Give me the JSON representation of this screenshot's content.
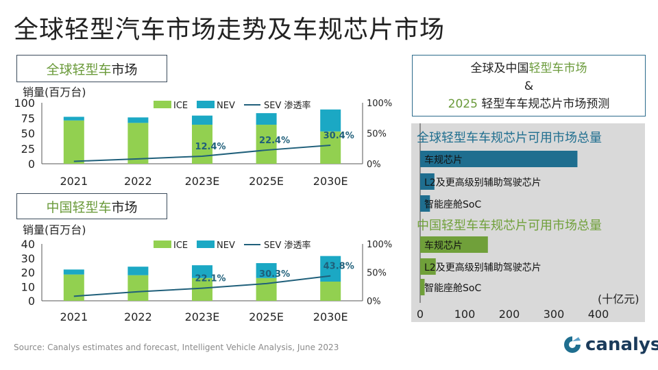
{
  "title": "全球轻型汽车市场走势及车规芯片市场",
  "global_panel": {
    "title_green": "全球轻型车",
    "title_dark": "市场",
    "ylabel": "销量(百万台)"
  },
  "china_panel": {
    "title_green": "中国轻型车",
    "title_dark": "市场",
    "ylabel": "销量(百万台)"
  },
  "right_panel": {
    "line1_a": "全球及中国",
    "line1_b": "轻型车市场",
    "line2": "&",
    "line3_a": "2025",
    "line3_b": " 轻型车车规芯片市场预测"
  },
  "source": "Source: Canalys estimates and forecast, Intelligent Vehicle Analysis, June 2023",
  "logo": "canalys",
  "colors": {
    "ice": "#92d050",
    "nev": "#1ba8c4",
    "sev": "#1f5f7a",
    "global_bar": "#1f6e8f",
    "china_bar": "#70a03a",
    "panel_bg": "#d9d9d9"
  },
  "chart_data": [
    {
      "type": "bar",
      "subtype": "stacked-with-line",
      "title": "全球轻型车市场",
      "ylabel": "销量(百万台)",
      "categories": [
        "2021",
        "2022",
        "2023E",
        "2025E",
        "2030E"
      ],
      "series": [
        {
          "name": "ICE",
          "values": [
            71,
            67,
            64,
            64,
            53
          ]
        },
        {
          "name": "NEV",
          "values": [
            6,
            9,
            15,
            19,
            36
          ]
        }
      ],
      "line": {
        "name": "SEV 渗透率",
        "values": [
          4,
          8,
          12.4,
          22.4,
          30.4
        ],
        "labels": [
          "",
          "",
          "12.4%",
          "22.4%",
          "30.4%"
        ]
      },
      "yticks_left": [
        "100",
        "75",
        "50",
        "25",
        "0"
      ],
      "yticks_right": [
        "100%",
        "50%",
        "0%"
      ],
      "ylim": [
        0,
        100
      ],
      "y2lim": [
        0,
        100
      ],
      "legend": "top"
    },
    {
      "type": "bar",
      "subtype": "stacked-with-line",
      "title": "中国轻型车市场",
      "ylabel": "销量(百万台)",
      "categories": [
        "2021",
        "2022",
        "2023E",
        "2025E",
        "2030E"
      ],
      "series": [
        {
          "name": "ICE",
          "values": [
            18.5,
            18,
            16,
            16,
            13.5
          ]
        },
        {
          "name": "NEV",
          "values": [
            3.5,
            6,
            9,
            10.5,
            18
          ]
        }
      ],
      "line": {
        "name": "SEV 渗透率",
        "values": [
          8,
          16,
          22.1,
          30.3,
          43.8
        ],
        "labels": [
          "",
          "",
          "22.1%",
          "30.3%",
          "43.8%"
        ]
      },
      "yticks_left": [
        "40",
        "30",
        "20",
        "10",
        "0"
      ],
      "yticks_right": [
        "100%",
        "50%",
        "0%"
      ],
      "ylim": [
        0,
        40
      ],
      "y2lim": [
        0,
        100
      ],
      "legend": "top"
    },
    {
      "type": "bar",
      "orientation": "horizontal",
      "title": "全球轻型车车规芯片可用市场总量 / 中国轻型车车规芯片可用市场总量",
      "xlabel": "(十亿元)",
      "xlim": [
        0,
        400
      ],
      "xticks": [
        "0",
        "100",
        "200",
        "300",
        "400"
      ],
      "groups": [
        {
          "title": "全球轻型车车规芯片可用市场总量",
          "color": "#1f6e8f",
          "categories": [
            "车规芯片",
            "L2及更高级别辅助驾驶芯片",
            "智能座舱SoC"
          ],
          "values": [
            353,
            32,
            22
          ]
        },
        {
          "title": "中国轻型车车规芯片可用市场总量",
          "color": "#70a03a",
          "categories": [
            "车规芯片",
            "L2及更高级别辅助驾驶芯片",
            "智能座舱SoC"
          ],
          "values": [
            152,
            35,
            10
          ]
        }
      ]
    }
  ]
}
